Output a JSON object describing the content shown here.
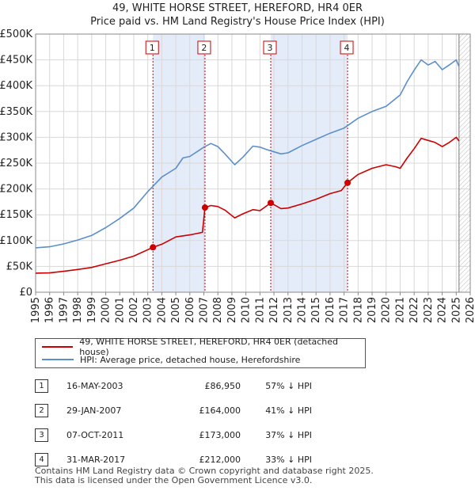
{
  "title_line1": "49, WHITE HORSE STREET, HEREFORD, HR4 0ER",
  "title_line2": "Price paid vs. HM Land Registry's House Price Index (HPI)",
  "chart_data": {
    "type": "line",
    "title": "49, WHITE HORSE STREET, HEREFORD, HR4 0ER - Price paid vs. HM Land Registry's House Price Index (HPI)",
    "xlabel": "",
    "ylabel": "",
    "xlim": [
      1995,
      2026
    ],
    "ylim": [
      0,
      500000
    ],
    "grid": true,
    "x_ticks": [
      "1995",
      "1996",
      "1997",
      "1998",
      "1999",
      "2000",
      "2001",
      "2002",
      "2003",
      "2004",
      "2005",
      "2006",
      "2007",
      "2008",
      "2009",
      "2010",
      "2011",
      "2012",
      "2013",
      "2014",
      "2015",
      "2016",
      "2017",
      "2018",
      "2019",
      "2020",
      "2021",
      "2022",
      "2023",
      "2024",
      "2025",
      "2026"
    ],
    "y_ticks": [
      0,
      50000,
      100000,
      150000,
      200000,
      250000,
      300000,
      350000,
      400000,
      450000,
      500000
    ],
    "y_tick_labels": [
      "£0",
      "£50K",
      "£100K",
      "£150K",
      "£200K",
      "£250K",
      "£300K",
      "£350K",
      "£400K",
      "£450K",
      "£500K"
    ],
    "series": [
      {
        "name": "49, WHITE HORSE STREET, HEREFORD, HR4 0ER (detached house)",
        "color": "#cc0000",
        "points": [
          [
            1995.0,
            37000
          ],
          [
            1996.0,
            37500
          ],
          [
            1997.0,
            40500
          ],
          [
            1998.0,
            44000
          ],
          [
            1999.0,
            48000
          ],
          [
            2000.0,
            55000
          ],
          [
            2001.0,
            62000
          ],
          [
            2002.0,
            70000
          ],
          [
            2003.37,
            86950
          ],
          [
            2004.0,
            93000
          ],
          [
            2005.0,
            107000
          ],
          [
            2006.0,
            111000
          ],
          [
            2006.9,
            116000
          ],
          [
            2007.08,
            164000
          ],
          [
            2007.5,
            168000
          ],
          [
            2008.0,
            166000
          ],
          [
            2008.5,
            159000
          ],
          [
            2009.2,
            144000
          ],
          [
            2009.8,
            152000
          ],
          [
            2010.5,
            160000
          ],
          [
            2011.0,
            158000
          ],
          [
            2011.77,
            173000
          ],
          [
            2012.5,
            162000
          ],
          [
            2013.0,
            163000
          ],
          [
            2014.0,
            171000
          ],
          [
            2015.0,
            180000
          ],
          [
            2016.0,
            191000
          ],
          [
            2016.8,
            197000
          ],
          [
            2017.25,
            212000
          ],
          [
            2018.0,
            228000
          ],
          [
            2019.0,
            240000
          ],
          [
            2020.0,
            247000
          ],
          [
            2020.7,
            243000
          ],
          [
            2021.0,
            240000
          ],
          [
            2021.5,
            260000
          ],
          [
            2022.0,
            278000
          ],
          [
            2022.5,
            298000
          ],
          [
            2023.0,
            294000
          ],
          [
            2023.5,
            290000
          ],
          [
            2024.0,
            282000
          ],
          [
            2024.5,
            290000
          ],
          [
            2025.0,
            300000
          ],
          [
            2025.2,
            293000
          ]
        ]
      },
      {
        "name": "HPI: Average price, detached house, Herefordshire",
        "color": "#5b8fcc",
        "points": [
          [
            1995.0,
            86000
          ],
          [
            1996.0,
            88000
          ],
          [
            1997.0,
            93500
          ],
          [
            1998.0,
            101000
          ],
          [
            1999.0,
            110000
          ],
          [
            2000.0,
            125000
          ],
          [
            2001.0,
            143000
          ],
          [
            2002.0,
            163000
          ],
          [
            2003.0,
            195000
          ],
          [
            2004.0,
            223000
          ],
          [
            2005.0,
            240000
          ],
          [
            2005.5,
            260000
          ],
          [
            2006.0,
            263000
          ],
          [
            2006.5,
            272000
          ],
          [
            2007.0,
            281000
          ],
          [
            2007.5,
            288000
          ],
          [
            2008.0,
            282000
          ],
          [
            2008.5,
            268000
          ],
          [
            2009.2,
            247000
          ],
          [
            2009.8,
            262000
          ],
          [
            2010.5,
            283000
          ],
          [
            2011.0,
            281000
          ],
          [
            2011.5,
            276000
          ],
          [
            2012.0,
            272000
          ],
          [
            2012.5,
            268000
          ],
          [
            2013.0,
            270000
          ],
          [
            2014.0,
            284000
          ],
          [
            2015.0,
            296000
          ],
          [
            2016.0,
            308000
          ],
          [
            2017.0,
            318000
          ],
          [
            2018.0,
            337000
          ],
          [
            2019.0,
            350000
          ],
          [
            2020.0,
            360000
          ],
          [
            2021.0,
            382000
          ],
          [
            2021.5,
            408000
          ],
          [
            2022.0,
            430000
          ],
          [
            2022.5,
            450000
          ],
          [
            2023.0,
            440000
          ],
          [
            2023.5,
            447000
          ],
          [
            2024.0,
            431000
          ],
          [
            2024.5,
            440000
          ],
          [
            2025.0,
            450000
          ],
          [
            2025.2,
            437000
          ]
        ]
      }
    ],
    "sales": [
      {
        "label": "1",
        "x": 2003.37,
        "price": 86950
      },
      {
        "label": "2",
        "x": 2007.08,
        "price": 164000
      },
      {
        "label": "3",
        "x": 2011.77,
        "price": 173000
      },
      {
        "label": "4",
        "x": 2017.25,
        "price": 212000
      }
    ],
    "shaded_periods": [
      [
        2003.37,
        2007.08
      ],
      [
        2011.77,
        2017.25
      ]
    ],
    "forecast_start": 2025.2
  },
  "legend": {
    "property_label": "49, WHITE HORSE STREET, HEREFORD, HR4 0ER (detached house)",
    "hpi_label": "HPI: Average price, detached house, Herefordshire",
    "property_color": "#cc0000",
    "hpi_color": "#5b8fcc"
  },
  "transactions": [
    {
      "num": "1",
      "date": "16-MAY-2003",
      "price": "£86,950",
      "hpi": "57% ↓ HPI"
    },
    {
      "num": "2",
      "date": "29-JAN-2007",
      "price": "£164,000",
      "hpi": "41% ↓ HPI"
    },
    {
      "num": "3",
      "date": "07-OCT-2011",
      "price": "£173,000",
      "hpi": "37% ↓ HPI"
    },
    {
      "num": "4",
      "date": "31-MAR-2017",
      "price": "£212,000",
      "hpi": "33% ↓ HPI"
    }
  ],
  "footer_line1": "Contains HM Land Registry data © Crown copyright and database right 2025.",
  "footer_line2": "This data is licensed under the Open Government Licence v3.0."
}
